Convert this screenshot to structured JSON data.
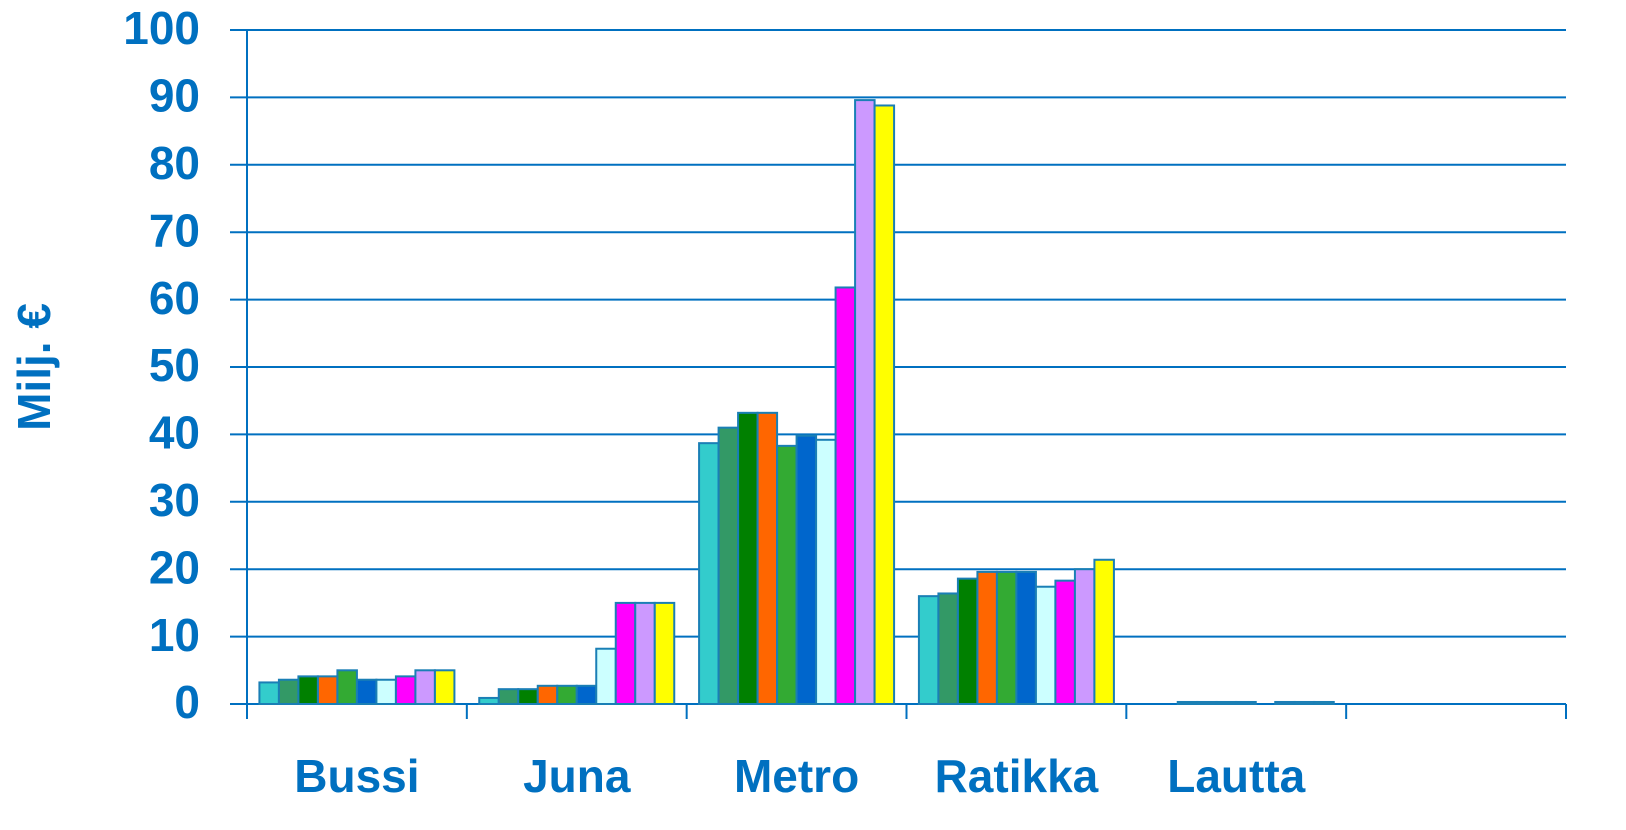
{
  "chart_data": {
    "type": "bar",
    "y_label": "Milj. €",
    "categories": [
      "Bussi",
      "Juna",
      "Metro",
      "Ratikka",
      "Lautta",
      null
    ],
    "series": [
      {
        "color": "#33cccc",
        "values": [
          3.2,
          0.9,
          38.7,
          16.0,
          0,
          null
        ]
      },
      {
        "color": "#339966",
        "values": [
          3.6,
          2.2,
          41.0,
          16.4,
          0,
          null
        ]
      },
      {
        "color": "#008000",
        "values": [
          4.1,
          2.2,
          43.2,
          18.6,
          0.3,
          null
        ]
      },
      {
        "color": "#ff6600",
        "values": [
          4.1,
          2.7,
          43.2,
          19.6,
          0.3,
          null
        ]
      },
      {
        "color": "#33aa33",
        "values": [
          5.0,
          2.7,
          38.3,
          19.6,
          0.3,
          null
        ]
      },
      {
        "color": "#0066cc",
        "values": [
          3.6,
          2.7,
          39.8,
          19.6,
          0.3,
          null
        ]
      },
      {
        "color": "#ccffff",
        "values": [
          3.6,
          8.2,
          39.2,
          17.4,
          0,
          null
        ]
      },
      {
        "color": "#ff00ff",
        "values": [
          4.1,
          15.0,
          61.8,
          18.3,
          0.3,
          null
        ]
      },
      {
        "color": "#cc99ff",
        "values": [
          5.0,
          15.0,
          89.6,
          20.0,
          0.3,
          null
        ]
      },
      {
        "color": "#ffff00",
        "values": [
          5.0,
          15.0,
          88.8,
          21.4,
          0.3,
          null
        ]
      }
    ],
    "ylim": [
      0,
      100
    ],
    "yticks": [
      0,
      10,
      20,
      30,
      40,
      50,
      60,
      70,
      80,
      90,
      100
    ],
    "grid": true
  }
}
